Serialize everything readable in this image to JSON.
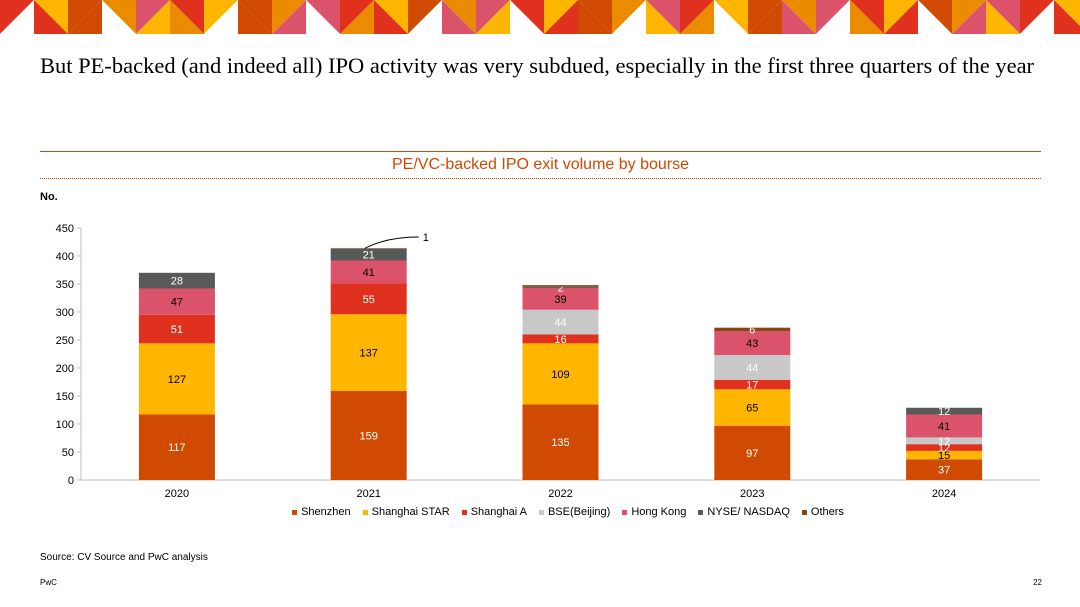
{
  "slide": {
    "title": "But PE-backed (and indeed all) IPO activity was very subdued, especially in the first three quarters of the year",
    "source": "Source: CV Source and PwC analysis",
    "footer": "PwC",
    "page_number": "22"
  },
  "colors": {
    "accent": "#d04a02",
    "banner": [
      "#e0301e",
      "#ffb600",
      "#d04a02",
      "#eb8c00",
      "#db536a"
    ]
  },
  "chart_data": {
    "type": "bar",
    "stacked": true,
    "title": "PE/VC-backed IPO exit volume by bourse",
    "xlabel": "",
    "ylabel": "No.",
    "ylim": [
      0,
      450
    ],
    "yticks": [
      0,
      50,
      100,
      150,
      200,
      250,
      300,
      350,
      400,
      450
    ],
    "categories": [
      "2020",
      "2021",
      "2022",
      "2023",
      "2024"
    ],
    "series": [
      {
        "name": "Shenzhen",
        "color": "#d04a02",
        "label_color": "#ffffff",
        "values": [
          117,
          159,
          135,
          97,
          37
        ]
      },
      {
        "name": "Shanghai STAR",
        "color": "#ffb600",
        "label_color": "#000000",
        "values": [
          127,
          137,
          109,
          65,
          15
        ]
      },
      {
        "name": "Shanghai A",
        "color": "#e0301e",
        "label_color": "#ffffff",
        "values": [
          51,
          55,
          16,
          17,
          12
        ]
      },
      {
        "name": "BSE(Beijing)",
        "color": "#c8c8c8",
        "label_color": "#ffffff",
        "values": [
          0,
          0,
          44,
          44,
          12
        ]
      },
      {
        "name": "Hong Kong",
        "color": "#db536a",
        "label_color": "#000000",
        "values": [
          47,
          41,
          39,
          43,
          41
        ]
      },
      {
        "name": "NYSE/ NASDAQ",
        "color": "#595959",
        "label_color": "#ffffff",
        "values": [
          28,
          21,
          2,
          0,
          12
        ]
      },
      {
        "name": "Others",
        "color": "#8b4513",
        "label_color": "#ffffff",
        "values": [
          0,
          1,
          3,
          6,
          0
        ]
      }
    ],
    "labels": [
      [
        "117",
        "127",
        "51",
        null,
        "47",
        "28",
        null
      ],
      [
        "159",
        "137",
        "55",
        null,
        "41",
        "21",
        "1"
      ],
      [
        "135",
        "109",
        "16",
        "44",
        "39",
        "2",
        null
      ],
      [
        "97",
        "65",
        "17",
        "44",
        "43",
        null,
        "6"
      ],
      [
        "37",
        "15",
        "12",
        "12",
        "41",
        "12",
        null
      ]
    ],
    "callout": {
      "category_index": 1,
      "series_index": 6,
      "text": "1"
    },
    "legend": "bottom"
  }
}
